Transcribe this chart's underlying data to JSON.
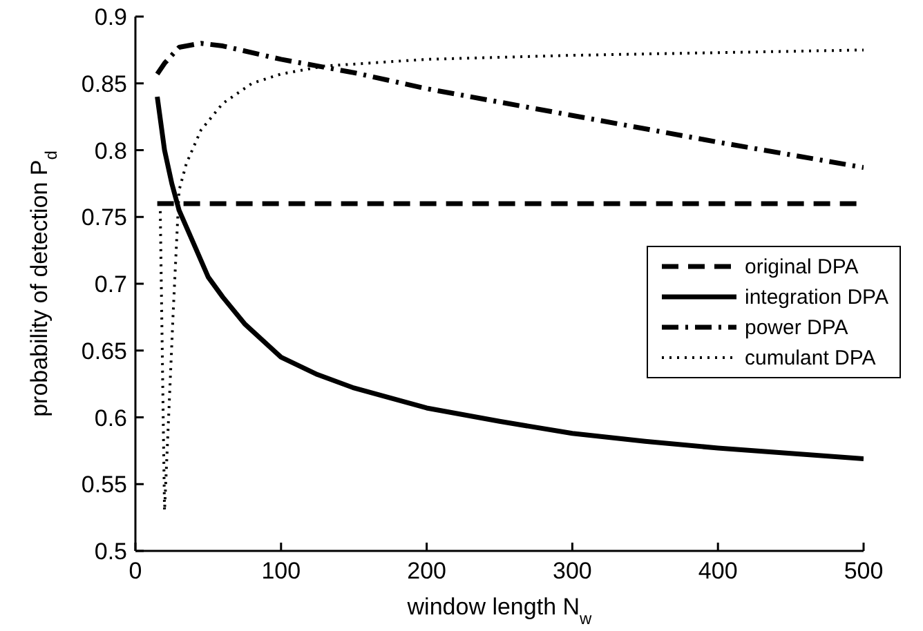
{
  "chart_data": {
    "type": "line",
    "xlabel": "window length N$_{w}$",
    "ylabel": "probability of detection P$_{d}$",
    "xlim": [
      0,
      500
    ],
    "xticks": [
      0,
      100,
      200,
      300,
      400,
      500
    ],
    "ylim": [
      0.5,
      0.9
    ],
    "yticks": [
      0.5,
      0.55,
      0.6,
      0.65,
      0.7,
      0.75,
      0.8,
      0.85,
      0.9
    ],
    "grid": false,
    "legend": "right",
    "marker": "none",
    "series": [
      {
        "name": "original DPA",
        "color": "#000000",
        "line_style": "dashed",
        "x": [
          15,
          500
        ],
        "values": [
          0.76,
          0.76
        ]
      },
      {
        "name": "integration DPA",
        "color": "#000000",
        "line_style": "solid",
        "x": [
          15,
          20,
          25,
          30,
          40,
          50,
          60,
          75,
          100,
          125,
          150,
          200,
          250,
          300,
          350,
          400,
          450,
          500
        ],
        "values": [
          0.84,
          0.8,
          0.775,
          0.755,
          0.73,
          0.705,
          0.69,
          0.67,
          0.645,
          0.632,
          0.622,
          0.607,
          0.597,
          0.588,
          0.582,
          0.577,
          0.573,
          0.569
        ]
      },
      {
        "name": "power DPA",
        "color": "#000000",
        "line_style": "dashdot",
        "x": [
          15,
          20,
          30,
          45,
          60,
          100,
          150,
          200,
          300,
          400,
          500
        ],
        "values": [
          0.857,
          0.865,
          0.877,
          0.88,
          0.878,
          0.868,
          0.858,
          0.846,
          0.826,
          0.806,
          0.787
        ]
      },
      {
        "name": "cumulant DPA",
        "color": "#000000",
        "line_style": "dotted",
        "x": [
          17,
          20,
          26,
          30,
          35,
          45,
          60,
          80,
          100,
          130,
          200,
          300,
          400,
          500
        ],
        "values": [
          0.76,
          0.53,
          0.68,
          0.77,
          0.79,
          0.815,
          0.835,
          0.85,
          0.857,
          0.863,
          0.868,
          0.871,
          0.873,
          0.875
        ]
      }
    ]
  }
}
